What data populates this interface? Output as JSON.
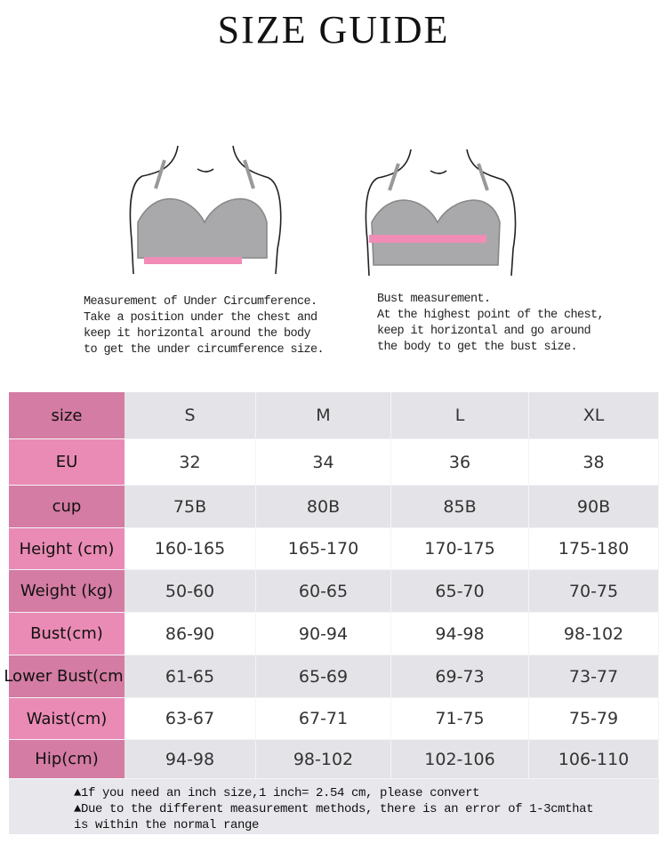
{
  "title": "SIZE GUIDE",
  "illustrations": [
    {
      "caption": [
        "Measurement of Under Circumference.",
        "Take a position under the chest and",
        "keep it horizontal around the body",
        "to get the under circumference size."
      ]
    },
    {
      "caption": [
        "Bust measurement.",
        "At the highest point of the chest,",
        "keep it horizontal and go around",
        "the body to get the bust size."
      ]
    }
  ],
  "table": {
    "rows": [
      [
        "size",
        "S",
        "M",
        "L",
        "XL"
      ],
      [
        "EU",
        32,
        34,
        36,
        38
      ],
      [
        "cup",
        "75B",
        "80B",
        "85B",
        "90B"
      ],
      [
        "Height (cm)",
        "160-165",
        "165-170",
        "170-175",
        "175-180"
      ],
      [
        "Weight (kg)",
        "50-60",
        "60-65",
        "65-70",
        "70-75"
      ],
      [
        "Bust(cm)",
        "86-90",
        "90-94",
        "94-98",
        "98-102"
      ],
      [
        "Lower Bust(cm)",
        "61-65",
        "65-69",
        "69-73",
        "73-77"
      ],
      [
        "Waist(cm)",
        "63-67",
        "67-71",
        "71-75",
        "75-79"
      ],
      [
        "Hip(cm)",
        "94-98",
        "98-102",
        "102-106",
        "106-110"
      ]
    ]
  },
  "notes": [
    "▲1f you need an inch size,1 inch= 2.54 cm, please convert",
    "▲Due to the different measurement methods, there is an error of 1-3cmthat",
    "is within the normal range"
  ]
}
